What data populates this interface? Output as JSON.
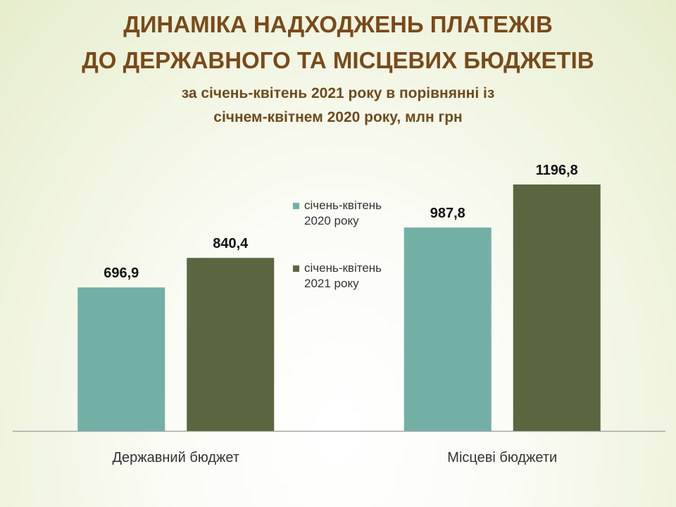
{
  "chart_data": {
    "type": "bar",
    "title": [
      "ДИНАМІКА НАДХОДЖЕНЬ ПЛАТЕЖІВ",
      "ДО ДЕРЖАВНОГО ТА МІСЦЕВИХ БЮДЖЕТІВ"
    ],
    "subtitle": [
      "за січень-квітень 2021 року в порівнянні із",
      "січнем-квітнем 2020 року, млн грн"
    ],
    "categories": [
      "Державний бюджет",
      "Місцеві бюджети"
    ],
    "series": [
      {
        "name": "січень-квітень 2020 року",
        "color": "#72b0a6",
        "values": [
          696.9,
          987.8
        ],
        "value_labels": [
          "696,9",
          "987,8"
        ]
      },
      {
        "name": "січень-квітень 2021 року",
        "color": "#5a6640",
        "values": [
          840.4,
          1196.8
        ],
        "value_labels": [
          "840,4",
          "1196,8"
        ]
      }
    ]
  }
}
